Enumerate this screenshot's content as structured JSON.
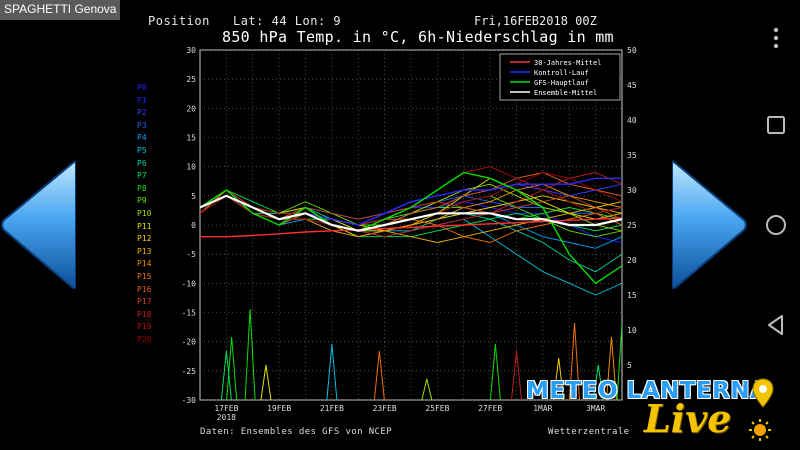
{
  "app_title": "SPAGHETTI Genova",
  "header": {
    "position": "Position   Lat: 44 Lon: 9",
    "run_date": "Fri,16FEB2018 00Z",
    "title": "850 hPa Temp. in °C, 6h-Niederschlag in mm"
  },
  "members": [
    {
      "label": "P0",
      "color": "#2020ff"
    },
    {
      "label": "P1",
      "color": "#2020ff"
    },
    {
      "label": "P2",
      "color": "#3040ff"
    },
    {
      "label": "P3",
      "color": "#2060ff"
    },
    {
      "label": "P4",
      "color": "#00a0ff"
    },
    {
      "label": "P5",
      "color": "#00c0e0"
    },
    {
      "label": "P6",
      "color": "#00d0a0"
    },
    {
      "label": "P7",
      "color": "#00e060"
    },
    {
      "label": "P8",
      "color": "#20e020"
    },
    {
      "label": "P9",
      "color": "#60e000"
    },
    {
      "label": "P10",
      "color": "#a0e000"
    },
    {
      "label": "P11",
      "color": "#e0e000"
    },
    {
      "label": "P12",
      "color": "#f0d000"
    },
    {
      "label": "P13",
      "color": "#f0b000"
    },
    {
      "label": "P14",
      "color": "#f09000"
    },
    {
      "label": "P15",
      "color": "#f07000"
    },
    {
      "label": "P16",
      "color": "#e06020"
    },
    {
      "label": "P17",
      "color": "#d04020"
    },
    {
      "label": "P18",
      "color": "#c02020"
    },
    {
      "label": "P19",
      "color": "#b01010"
    },
    {
      "label": "P20",
      "color": "#a00000"
    }
  ],
  "chart_data": {
    "type": "line",
    "title": "850 hPa Temp. in °C, 6h-Niederschlag in mm",
    "x_tick_labels": [
      "17FEB",
      "19FEB",
      "21FEB",
      "23FEB",
      "25FEB",
      "27FEB",
      "1MAR",
      "3MAR"
    ],
    "x_year_label": "2018",
    "y_left": {
      "ticks": [
        30,
        25,
        20,
        15,
        10,
        5,
        0,
        -5,
        -10,
        -15,
        -20,
        -25,
        -30
      ],
      "lim": [
        -30,
        30
      ]
    },
    "y_right": {
      "ticks": [
        50,
        45,
        40,
        35,
        30,
        25,
        20,
        15,
        10,
        5
      ],
      "lim": [
        0,
        50
      ]
    },
    "x_days": [
      0,
      1,
      2,
      3,
      4,
      5,
      6,
      7,
      8,
      9,
      10,
      11,
      12,
      13,
      14,
      15,
      16
    ],
    "grid": true,
    "legend_position": "top-right",
    "legend": [
      {
        "name": "30-Jahres-Mittel",
        "color": "#ff3030"
      },
      {
        "name": "Kontroll-Lauf",
        "color": "#2a2aff"
      },
      {
        "name": "GFS-Hauptlauf",
        "color": "#00e000"
      },
      {
        "name": "Ensemble-Mittel",
        "color": "#ffffff"
      }
    ],
    "series": [
      {
        "name": "30-Jahres-Mittel",
        "color": "#ff3030",
        "values": [
          -2,
          -2,
          -1.8,
          -1.5,
          -1.2,
          -1,
          -0.8,
          -0.6,
          -0.4,
          -0.2,
          0,
          0.2,
          0.4,
          0.6,
          0.8,
          1,
          1.2
        ]
      },
      {
        "name": "Kontroll-Lauf",
        "color": "#2a2aff",
        "values": [
          3,
          5,
          3,
          1,
          2,
          1,
          0,
          2,
          4,
          5,
          6,
          6,
          7,
          7,
          7,
          8,
          8
        ]
      },
      {
        "name": "GFS-Hauptlauf",
        "color": "#00e000",
        "values": [
          3,
          6,
          2,
          0,
          3,
          0,
          -1,
          1,
          3,
          6,
          9,
          8,
          6,
          3,
          -5,
          -10,
          -7
        ]
      },
      {
        "name": "Ensemble-Mittel",
        "color": "#ffffff",
        "values": [
          3,
          5,
          3,
          1,
          2,
          0,
          -1,
          0,
          1,
          2,
          2,
          2,
          1,
          1,
          0,
          0,
          1
        ]
      }
    ],
    "member_series": [
      [
        3,
        6,
        3,
        2,
        2,
        1,
        0,
        2,
        3,
        3,
        4,
        3,
        2,
        2,
        0,
        -2,
        -3
      ],
      [
        3,
        5,
        3,
        1,
        3,
        2,
        1,
        2,
        4,
        5,
        6,
        6,
        7,
        6,
        5,
        6,
        7
      ],
      [
        2,
        6,
        3,
        1,
        2,
        0,
        -1,
        1,
        2,
        4,
        5,
        4,
        3,
        3,
        2,
        2,
        3
      ],
      [
        3,
        5,
        2,
        0,
        1,
        -1,
        -2,
        -1,
        0,
        1,
        3,
        2,
        0,
        -2,
        -3,
        -4,
        -2
      ],
      [
        2,
        6,
        3,
        1,
        1,
        0,
        -1,
        -1,
        -1,
        0,
        1,
        -2,
        -5,
        -8,
        -10,
        -12,
        -10
      ],
      [
        3,
        5,
        2,
        2,
        3,
        1,
        -1,
        -2,
        -1,
        1,
        2,
        1,
        -1,
        -3,
        -6,
        -8,
        -5
      ],
      [
        2,
        6,
        4,
        2,
        2,
        0,
        -2,
        -2,
        -2,
        -1,
        0,
        1,
        2,
        1,
        0,
        -1,
        0
      ],
      [
        3,
        5,
        3,
        1,
        1,
        1,
        0,
        1,
        2,
        3,
        3,
        2,
        1,
        2,
        3,
        2,
        1
      ],
      [
        2,
        5,
        3,
        2,
        4,
        2,
        0,
        0,
        1,
        2,
        4,
        5,
        3,
        1,
        -1,
        -2,
        -1
      ],
      [
        3,
        6,
        3,
        1,
        2,
        0,
        -1,
        0,
        2,
        4,
        6,
        7,
        5,
        3,
        2,
        0,
        -1
      ],
      [
        3,
        5,
        2,
        1,
        2,
        1,
        -1,
        -1,
        0,
        2,
        5,
        8,
        6,
        4,
        2,
        1,
        2
      ],
      [
        2,
        6,
        3,
        2,
        3,
        0,
        -2,
        -1,
        0,
        1,
        2,
        3,
        4,
        5,
        4,
        3,
        4
      ],
      [
        3,
        5,
        3,
        1,
        2,
        1,
        0,
        -1,
        -2,
        -3,
        -2,
        -1,
        0,
        1,
        2,
        3,
        2
      ],
      [
        2,
        5,
        3,
        1,
        1,
        -1,
        -2,
        -1,
        0,
        1,
        3,
        4,
        6,
        7,
        5,
        4,
        3
      ],
      [
        3,
        6,
        2,
        0,
        2,
        1,
        0,
        1,
        1,
        0,
        -2,
        -3,
        -1,
        0,
        1,
        2,
        0
      ],
      [
        3,
        5,
        3,
        1,
        2,
        0,
        -1,
        0,
        2,
        3,
        5,
        6,
        8,
        9,
        7,
        6,
        5
      ],
      [
        2,
        6,
        3,
        1,
        3,
        2,
        1,
        2,
        3,
        4,
        3,
        2,
        3,
        4,
        5,
        3,
        1
      ],
      [
        3,
        5,
        2,
        1,
        2,
        0,
        -1,
        -2,
        -1,
        0,
        1,
        2,
        4,
        6,
        8,
        9,
        7
      ],
      [
        3,
        6,
        3,
        2,
        2,
        1,
        0,
        1,
        3,
        6,
        9,
        10,
        8,
        6,
        4,
        2,
        3
      ],
      [
        2,
        5,
        3,
        1,
        1,
        0,
        -1,
        0,
        1,
        2,
        4,
        5,
        7,
        9,
        8,
        6,
        4
      ]
    ],
    "precip_peaks": [
      {
        "day": 1.2,
        "mm": 9,
        "color": "#00e000"
      },
      {
        "day": 1.9,
        "mm": 13,
        "color": "#00e000"
      },
      {
        "day": 1.0,
        "mm": 7,
        "color": "#00e060"
      },
      {
        "day": 2.5,
        "mm": 5,
        "color": "#e0e000"
      },
      {
        "day": 5.0,
        "mm": 8,
        "color": "#00c0e0"
      },
      {
        "day": 6.8,
        "mm": 7,
        "color": "#f07000"
      },
      {
        "day": 8.6,
        "mm": 3,
        "color": "#a0e000"
      },
      {
        "day": 11.2,
        "mm": 8,
        "color": "#00e000"
      },
      {
        "day": 12.0,
        "mm": 7,
        "color": "#c02020"
      },
      {
        "day": 13.6,
        "mm": 6,
        "color": "#f0d000"
      },
      {
        "day": 14.2,
        "mm": 11,
        "color": "#f07000"
      },
      {
        "day": 15.1,
        "mm": 5,
        "color": "#00e060"
      },
      {
        "day": 15.6,
        "mm": 9,
        "color": "#f09000"
      },
      {
        "day": 16.0,
        "mm": 11,
        "color": "#00e000"
      }
    ]
  },
  "footer": {
    "source": "Daten: Ensembles des GFS von NCEP",
    "site": "Wetterzentrale"
  },
  "logo": {
    "text": "METEO LANTERNA",
    "live": "Live"
  },
  "icons": {
    "prev": "chevron-left-icon",
    "next": "chevron-right-icon",
    "menu": "kebab-menu-icon",
    "recents": "square-icon",
    "home": "circle-icon",
    "back": "triangle-back-icon"
  }
}
